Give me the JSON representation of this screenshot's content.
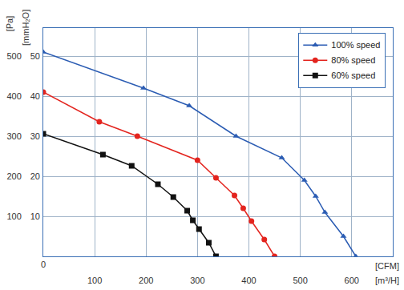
{
  "chart_data": {
    "type": "line",
    "xlabel": "[m³/H]",
    "x2label": "[CFM]",
    "ylabel": "[Pa]",
    "y2label": "[mmH₂O]",
    "xlim": [
      0,
      680
    ],
    "xticks": [
      100,
      200,
      300,
      400,
      500,
      600
    ],
    "x2lim": [
      0,
      400
    ],
    "x2ticks": [
      0
    ],
    "ylim": [
      0,
      570
    ],
    "yticks": [
      100,
      200,
      300,
      400,
      500
    ],
    "y2lim": [
      0,
      57
    ],
    "y2ticks": [
      10,
      20,
      30,
      40,
      50
    ],
    "grid": true,
    "legend": "upper right",
    "series": [
      {
        "name": "100% speed",
        "color": "#2b5cb3",
        "marker": "triangle",
        "x": [
          0,
          195,
          284,
          375,
          464,
          508,
          530,
          548,
          584,
          608
        ],
        "values": [
          510,
          420,
          376,
          300,
          246,
          190,
          150,
          110,
          50,
          0
        ]
      },
      {
        "name": "80% speed",
        "color": "#e3241e",
        "marker": "circle",
        "x": [
          0,
          109,
          183,
          300,
          336,
          372,
          389,
          405,
          430,
          450
        ],
        "values": [
          410,
          336,
          300,
          240,
          196,
          152,
          120,
          88,
          42,
          0
        ]
      },
      {
        "name": "60% speed",
        "color": "#111111",
        "marker": "square",
        "x": [
          0,
          116,
          172,
          223,
          253,
          280,
          291,
          303,
          322,
          336
        ],
        "values": [
          306,
          254,
          226,
          180,
          148,
          114,
          90,
          68,
          34,
          0
        ]
      }
    ]
  }
}
